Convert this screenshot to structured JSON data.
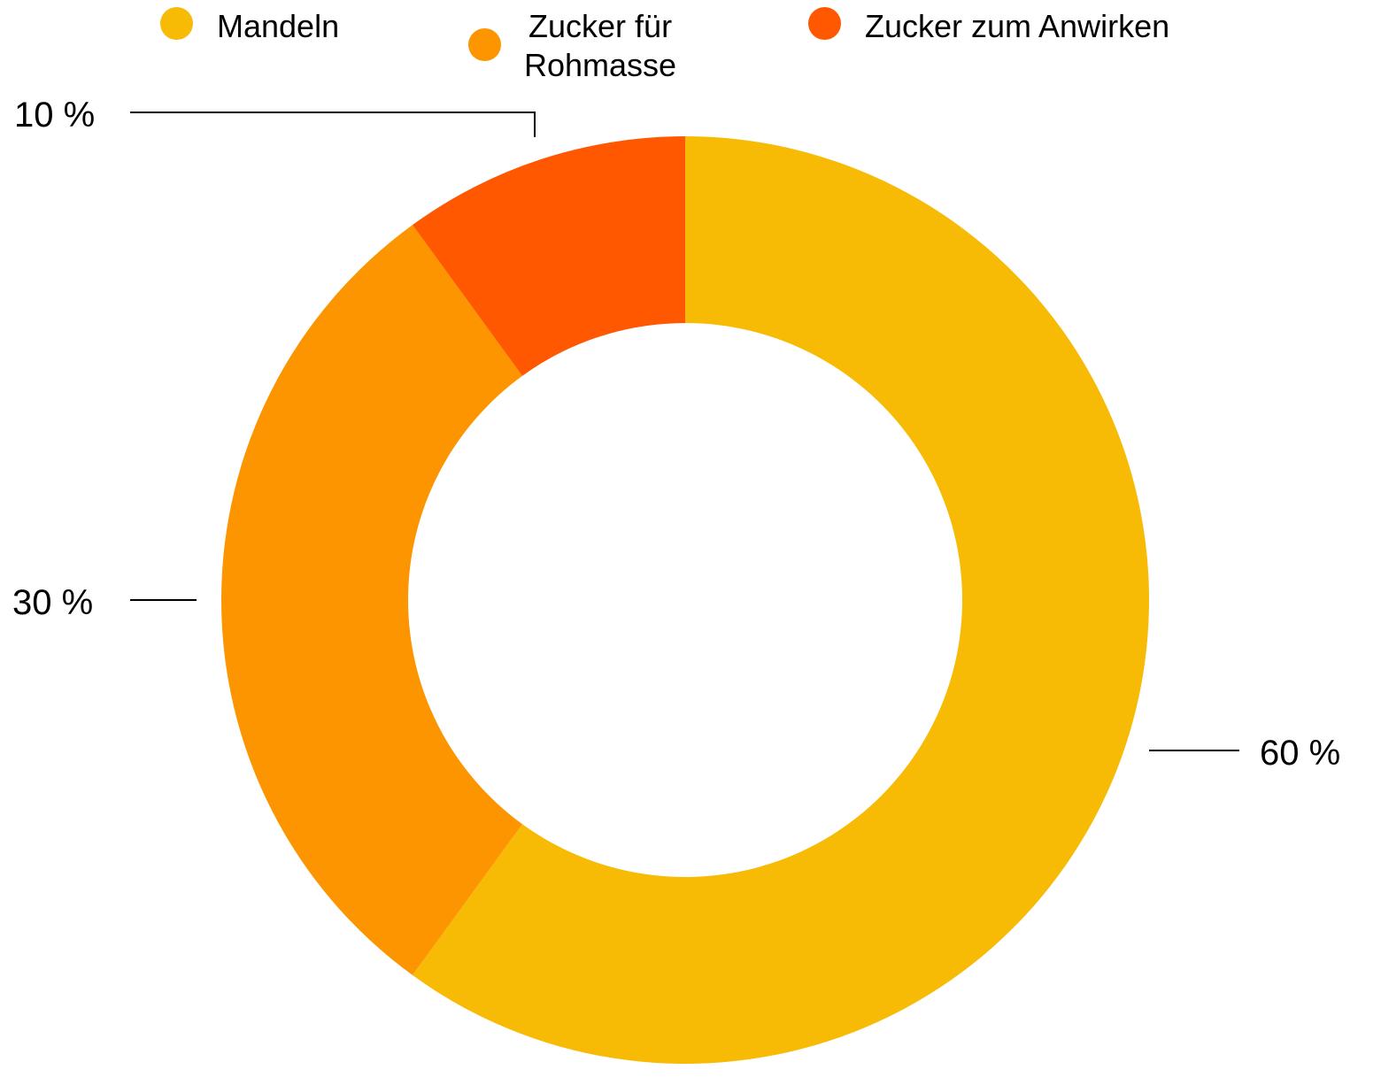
{
  "chart_data": {
    "type": "pie",
    "variant": "donut",
    "categories": [
      "Mandeln",
      "Zucker für Rohmasse",
      "Zucker zum Anwirken"
    ],
    "values": [
      60,
      30,
      10
    ],
    "unit": "%",
    "data_labels": [
      "60 %",
      "30 %",
      "10 %"
    ],
    "colors": [
      "#F7BA05",
      "#FC9500",
      "#FF5800"
    ],
    "legend": {
      "position": "top",
      "entries": [
        {
          "label": "Mandeln",
          "display": "Mandeln",
          "color": "#F7BA05"
        },
        {
          "label": "Zucker für Rohmasse",
          "display": "Zucker für\nRohmasse",
          "color": "#FC9500"
        },
        {
          "label": "Zucker zum Anwirken",
          "display": "Zucker zum Anwirken",
          "color": "#FF5800"
        }
      ]
    },
    "title": "",
    "start_angle": "12 o'clock",
    "direction": "clockwise"
  }
}
